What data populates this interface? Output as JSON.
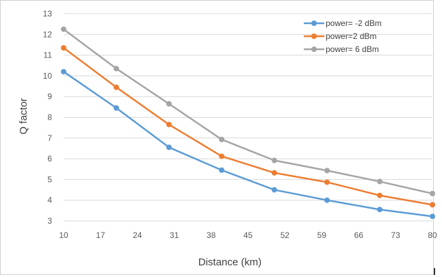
{
  "chart_data": {
    "type": "line",
    "title": "",
    "xlabel": "Distance (km)",
    "ylabel": "Q factor",
    "x_ticks": [
      "10",
      "17",
      "24",
      "31",
      "38",
      "45",
      "52",
      "59",
      "66",
      "73",
      "80"
    ],
    "xlim": [
      10,
      80
    ],
    "ylim": [
      3,
      13
    ],
    "y_ticks": [
      "3",
      "4",
      "5",
      "6",
      "7",
      "8",
      "9",
      "10",
      "11",
      "12",
      "13"
    ],
    "grid": "horizontal",
    "legend_position": "top-right",
    "x": [
      10,
      20,
      30,
      40,
      50,
      60,
      70,
      80
    ],
    "series": [
      {
        "name": "power= -2 dBm",
        "color": "#5B9BD5",
        "values": [
          10.2,
          8.45,
          6.55,
          5.45,
          4.5,
          4.0,
          3.55,
          3.22
        ]
      },
      {
        "name": "power=2 dBm",
        "color": "#ED7D31",
        "values": [
          11.35,
          9.45,
          7.65,
          6.12,
          5.32,
          4.87,
          4.23,
          3.78
        ]
      },
      {
        "name": "power= 6 dBm",
        "color": "#A5A5A5",
        "values": [
          12.25,
          10.35,
          8.65,
          6.93,
          5.92,
          5.43,
          4.9,
          4.32
        ]
      }
    ]
  }
}
